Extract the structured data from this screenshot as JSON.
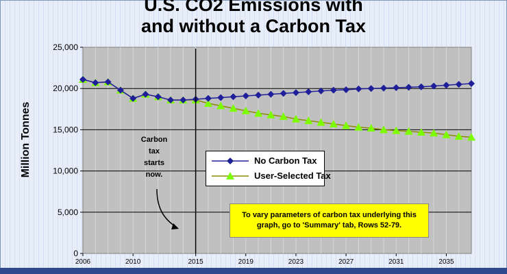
{
  "chart_data": {
    "type": "line",
    "title_line1": "U.S. CO2 Emissions with",
    "title_line2": "and without a Carbon Tax",
    "xlabel": "",
    "ylabel": "Million Tonnes",
    "ylim": [
      0,
      25000
    ],
    "xlim": [
      2006,
      2037
    ],
    "yticks": [
      "0",
      "5,000",
      "10,000",
      "15,000",
      "20,000",
      "25,000"
    ],
    "xticks": [
      "2006",
      "2010",
      "2015",
      "2019",
      "2023",
      "2027",
      "2031",
      "2035"
    ],
    "x": [
      2006,
      2007,
      2008,
      2009,
      2010,
      2011,
      2012,
      2013,
      2014,
      2015,
      2016,
      2017,
      2018,
      2019,
      2020,
      2021,
      2022,
      2023,
      2024,
      2025,
      2026,
      2027,
      2028,
      2029,
      2030,
      2031,
      2032,
      2033,
      2034,
      2035,
      2036,
      2037
    ],
    "series": [
      {
        "name": "No Carbon Tax",
        "color": "#1f1f9a",
        "marker": "diamond",
        "values": [
          21100,
          20700,
          20800,
          19800,
          18800,
          19300,
          19000,
          18600,
          18600,
          18700,
          18800,
          18900,
          19000,
          19100,
          19200,
          19300,
          19400,
          19500,
          19600,
          19700,
          19800,
          19850,
          19950,
          20000,
          20050,
          20100,
          20150,
          20200,
          20300,
          20400,
          20500,
          20600
        ]
      },
      {
        "name": "User-Selected Tax",
        "color": "#7cfc00",
        "line_color": "#8c8c00",
        "marker": "triangle",
        "values": [
          21100,
          20700,
          20800,
          19800,
          18800,
          19300,
          19000,
          18600,
          18600,
          18600,
          18200,
          17900,
          17600,
          17300,
          17000,
          16800,
          16600,
          16300,
          16100,
          15900,
          15700,
          15500,
          15300,
          15200,
          15000,
          14900,
          14800,
          14700,
          14600,
          14400,
          14200,
          14100
        ]
      }
    ],
    "vline": 2015,
    "grid": true,
    "legend": "center"
  },
  "annotation": {
    "text_lines": [
      "Carbon",
      "tax",
      "starts",
      "now."
    ]
  },
  "callout": {
    "text": "To vary parameters of carbon tax underlying this graph, go to 'Summary' tab, Rows 52-79."
  }
}
